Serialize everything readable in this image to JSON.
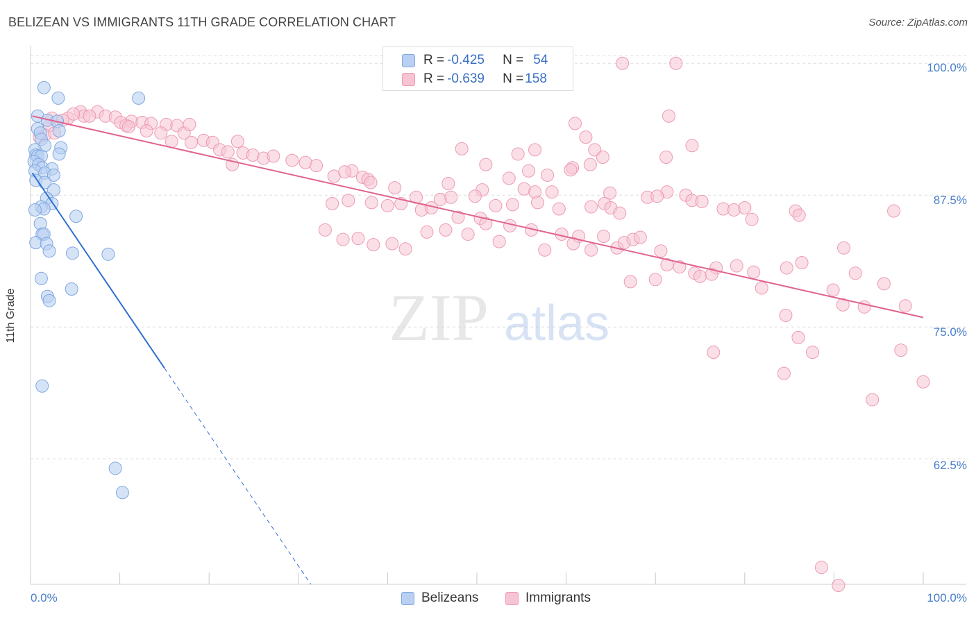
{
  "title": "BELIZEAN VS IMMIGRANTS 11TH GRADE CORRELATION CHART",
  "source": "Source: ZipAtlas.com",
  "watermark": {
    "zip": "ZIP",
    "atlas": "atlas"
  },
  "legend_top": {
    "rows": [
      {
        "r_label": "R = ",
        "r_value": "-0.425",
        "n_label": "N = ",
        "n_value": "54"
      },
      {
        "r_label": "R = ",
        "r_value": "-0.639",
        "n_label": "N = ",
        "n_value": "158"
      }
    ]
  },
  "colors": {
    "blue_fill": "#b9d0f2",
    "blue_stroke": "#7fa7e0",
    "blue_line": "#2f6fd0",
    "pink_fill": "#f7c4d3",
    "pink_stroke": "#ec9ab3",
    "pink_line": "#e0648f",
    "tick_text": "#4a7fc9",
    "grid": "#dedede"
  },
  "chart_data": {
    "type": "scatter",
    "title": "BELIZEAN VS IMMIGRANTS 11TH GRADE CORRELATION CHART",
    "xlabel": "",
    "ylabel": "11th Grade",
    "xlim": [
      0,
      100
    ],
    "ylim": [
      50.6,
      101.4
    ],
    "x_tick_labels": [
      "0.0%",
      "100.0%"
    ],
    "y_ticks": [
      62.5,
      75.0,
      87.5,
      100.0
    ],
    "y_tick_labels": [
      "62.5%",
      "75.0%",
      "87.5%",
      "100.0%"
    ],
    "grid": true,
    "legend_position": "bottom-center",
    "series": [
      {
        "name": "Belizeans",
        "r": -0.425,
        "n": 54,
        "trend": {
          "x0": 0.2,
          "y0": 89.6,
          "x1": 15.0,
          "y1": 71.1,
          "dash_to_x": 35.0,
          "dash_to_y": 46.1
        },
        "points": [
          [
            1.5,
            97.7
          ],
          [
            3.1,
            96.7
          ],
          [
            12.1,
            96.7
          ],
          [
            0.8,
            95.0
          ],
          [
            1.9,
            94.6
          ],
          [
            3.0,
            94.5
          ],
          [
            3.2,
            93.6
          ],
          [
            0.8,
            93.8
          ],
          [
            1.1,
            93.4
          ],
          [
            1.2,
            92.8
          ],
          [
            1.6,
            92.2
          ],
          [
            3.4,
            92.0
          ],
          [
            0.5,
            91.8
          ],
          [
            0.6,
            91.3
          ],
          [
            0.8,
            91.2
          ],
          [
            1.2,
            91.2
          ],
          [
            3.2,
            91.4
          ],
          [
            0.4,
            90.7
          ],
          [
            0.9,
            90.4
          ],
          [
            1.3,
            90.1
          ],
          [
            2.4,
            90.0
          ],
          [
            0.5,
            89.8
          ],
          [
            1.6,
            89.6
          ],
          [
            2.6,
            89.4
          ],
          [
            0.6,
            88.9
          ],
          [
            1.6,
            88.7
          ],
          [
            2.6,
            88.0
          ],
          [
            1.8,
            87.2
          ],
          [
            1.2,
            86.4
          ],
          [
            2.4,
            86.7
          ],
          [
            1.5,
            86.2
          ],
          [
            0.5,
            86.1
          ],
          [
            5.1,
            85.5
          ],
          [
            1.1,
            84.8
          ],
          [
            1.3,
            83.8
          ],
          [
            1.5,
            83.8
          ],
          [
            0.6,
            83.0
          ],
          [
            1.8,
            82.9
          ],
          [
            2.1,
            82.2
          ],
          [
            4.7,
            82.0
          ],
          [
            8.7,
            81.9
          ],
          [
            1.2,
            79.6
          ],
          [
            4.6,
            78.6
          ],
          [
            1.9,
            77.9
          ],
          [
            2.1,
            77.5
          ],
          [
            1.3,
            69.4
          ],
          [
            9.5,
            61.6
          ],
          [
            10.3,
            59.3
          ]
        ]
      },
      {
        "name": "Immigrants",
        "r": -0.639,
        "n": 158,
        "trend": {
          "x0": 0.2,
          "y0": 95.0,
          "x1": 100.0,
          "y1": 75.9
        },
        "points": [
          [
            66.3,
            100.0
          ],
          [
            72.3,
            100.0
          ],
          [
            5.6,
            95.4
          ],
          [
            7.5,
            95.4
          ],
          [
            2.4,
            94.8
          ],
          [
            4.2,
            94.8
          ],
          [
            6.0,
            95.0
          ],
          [
            8.4,
            95.0
          ],
          [
            4.8,
            95.2
          ],
          [
            6.6,
            95.0
          ],
          [
            9.5,
            94.9
          ],
          [
            3.6,
            94.6
          ],
          [
            10.1,
            94.4
          ],
          [
            11.3,
            94.5
          ],
          [
            12.5,
            94.4
          ],
          [
            13.5,
            94.3
          ],
          [
            2.1,
            94.1
          ],
          [
            10.7,
            94.1
          ],
          [
            15.2,
            94.2
          ],
          [
            16.4,
            94.1
          ],
          [
            71.5,
            95.0
          ],
          [
            61.0,
            94.3
          ],
          [
            13.0,
            93.6
          ],
          [
            1.6,
            93.2
          ],
          [
            2.7,
            93.4
          ],
          [
            14.6,
            93.4
          ],
          [
            11.0,
            94.0
          ],
          [
            17.2,
            93.4
          ],
          [
            17.8,
            94.2
          ],
          [
            15.8,
            92.6
          ],
          [
            18.0,
            92.5
          ],
          [
            19.4,
            92.7
          ],
          [
            20.4,
            92.5
          ],
          [
            23.2,
            92.6
          ],
          [
            21.2,
            91.8
          ],
          [
            22.1,
            91.6
          ],
          [
            23.8,
            91.5
          ],
          [
            24.9,
            91.3
          ],
          [
            26.1,
            91.0
          ],
          [
            27.2,
            91.2
          ],
          [
            22.6,
            90.4
          ],
          [
            29.3,
            90.8
          ],
          [
            30.8,
            90.6
          ],
          [
            32.0,
            90.3
          ],
          [
            1.0,
            93.0
          ],
          [
            62.2,
            93.0
          ],
          [
            74.1,
            92.2
          ],
          [
            48.3,
            91.9
          ],
          [
            56.5,
            91.8
          ],
          [
            63.2,
            91.8
          ],
          [
            71.2,
            91.1
          ],
          [
            54.6,
            91.4
          ],
          [
            62.7,
            90.4
          ],
          [
            60.7,
            90.1
          ],
          [
            60.5,
            89.9
          ],
          [
            64.1,
            91.1
          ],
          [
            51.0,
            90.4
          ],
          [
            55.8,
            89.8
          ],
          [
            57.9,
            89.4
          ],
          [
            53.6,
            89.1
          ],
          [
            34.0,
            89.3
          ],
          [
            36.0,
            89.8
          ],
          [
            35.2,
            89.7
          ],
          [
            37.2,
            89.2
          ],
          [
            37.8,
            89.0
          ],
          [
            38.1,
            88.7
          ],
          [
            40.8,
            88.2
          ],
          [
            46.8,
            88.6
          ],
          [
            50.6,
            88.0
          ],
          [
            55.3,
            88.1
          ],
          [
            56.5,
            87.8
          ],
          [
            58.4,
            87.8
          ],
          [
            64.9,
            87.7
          ],
          [
            69.1,
            87.3
          ],
          [
            71.3,
            87.8
          ],
          [
            73.4,
            87.5
          ],
          [
            74.1,
            87.0
          ],
          [
            33.8,
            86.7
          ],
          [
            35.6,
            87.0
          ],
          [
            38.2,
            86.8
          ],
          [
            40.0,
            86.5
          ],
          [
            41.5,
            86.7
          ],
          [
            43.2,
            87.3
          ],
          [
            43.8,
            86.1
          ],
          [
            44.9,
            86.3
          ],
          [
            45.9,
            87.1
          ],
          [
            47.1,
            87.3
          ],
          [
            49.8,
            87.4
          ],
          [
            52.1,
            86.5
          ],
          [
            54.0,
            86.6
          ],
          [
            56.8,
            86.8
          ],
          [
            59.2,
            86.2
          ],
          [
            62.8,
            86.4
          ],
          [
            64.3,
            86.7
          ],
          [
            65.0,
            86.3
          ],
          [
            66.0,
            85.8
          ],
          [
            70.2,
            87.4
          ],
          [
            75.2,
            86.9
          ],
          [
            77.6,
            86.2
          ],
          [
            78.8,
            86.1
          ],
          [
            80.0,
            86.3
          ],
          [
            80.8,
            85.2
          ],
          [
            85.7,
            86.0
          ],
          [
            86.1,
            85.6
          ],
          [
            96.7,
            86.0
          ],
          [
            47.9,
            85.4
          ],
          [
            50.4,
            85.3
          ],
          [
            51.0,
            84.8
          ],
          [
            53.7,
            84.6
          ],
          [
            56.1,
            84.2
          ],
          [
            59.5,
            83.8
          ],
          [
            61.4,
            83.6
          ],
          [
            64.2,
            83.6
          ],
          [
            60.8,
            82.9
          ],
          [
            62.8,
            82.3
          ],
          [
            65.7,
            82.5
          ],
          [
            66.5,
            83.0
          ],
          [
            67.5,
            83.3
          ],
          [
            68.3,
            83.5
          ],
          [
            33.0,
            84.2
          ],
          [
            35.0,
            83.3
          ],
          [
            36.7,
            83.4
          ],
          [
            38.4,
            82.8
          ],
          [
            40.5,
            82.9
          ],
          [
            42.0,
            82.4
          ],
          [
            44.4,
            84.0
          ],
          [
            46.5,
            84.2
          ],
          [
            49.0,
            83.8
          ],
          [
            52.5,
            83.1
          ],
          [
            57.6,
            82.3
          ],
          [
            70.6,
            82.2
          ],
          [
            71.3,
            80.9
          ],
          [
            76.8,
            80.6
          ],
          [
            79.1,
            80.8
          ],
          [
            81.0,
            80.2
          ],
          [
            74.4,
            80.1
          ],
          [
            75.0,
            79.8
          ],
          [
            67.2,
            79.3
          ],
          [
            70.0,
            79.5
          ],
          [
            72.7,
            80.7
          ],
          [
            76.3,
            80.0
          ],
          [
            81.9,
            78.7
          ],
          [
            89.9,
            78.5
          ],
          [
            91.0,
            77.1
          ],
          [
            93.4,
            76.9
          ],
          [
            95.6,
            79.1
          ],
          [
            98.0,
            77.0
          ],
          [
            84.6,
            76.1
          ],
          [
            86.0,
            74.0
          ],
          [
            87.6,
            72.6
          ],
          [
            97.5,
            72.8
          ],
          [
            84.7,
            80.6
          ],
          [
            86.4,
            81.1
          ],
          [
            91.1,
            82.5
          ],
          [
            92.4,
            80.1
          ],
          [
            76.5,
            72.6
          ],
          [
            84.4,
            70.6
          ],
          [
            94.3,
            68.1
          ],
          [
            100.0,
            69.8
          ],
          [
            88.6,
            52.2
          ],
          [
            90.5,
            50.5
          ]
        ]
      }
    ]
  },
  "axis": {
    "x_min_label": "0.0%",
    "x_max_label": "100.0%"
  },
  "bottom_legend": {
    "blue_label": "Belizeans",
    "pink_label": "Immigrants"
  }
}
